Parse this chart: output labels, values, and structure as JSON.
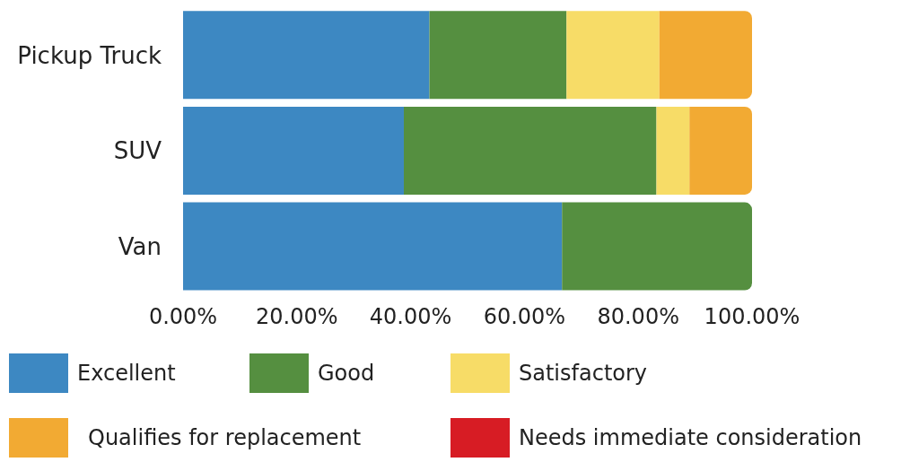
{
  "chart_data": {
    "type": "bar",
    "orientation": "horizontal",
    "stacked": true,
    "categories": [
      "Pickup Truck",
      "SUV",
      "Van"
    ],
    "series": [
      {
        "name": "Excellent",
        "color": "#3d88c2",
        "values": [
          43.3,
          38.8,
          66.6
        ]
      },
      {
        "name": "Good",
        "color": "#558f40",
        "values": [
          24.1,
          44.4,
          33.4
        ]
      },
      {
        "name": "Satisfactory",
        "color": "#f7dc67",
        "values": [
          16.3,
          5.8,
          0
        ]
      },
      {
        "name": "Qualifies for replacement",
        "color": "#f2aa33",
        "values": [
          16.3,
          11.0,
          0
        ]
      },
      {
        "name": "Needs immediate consideration",
        "color": "#d71c24",
        "values": [
          0,
          0,
          0
        ]
      }
    ],
    "xlim": [
      0,
      100
    ],
    "xticks": [
      {
        "value": 0,
        "label": "0.00%"
      },
      {
        "value": 20,
        "label": "20.00%"
      },
      {
        "value": 40,
        "label": "40.00%"
      },
      {
        "value": 60,
        "label": "60.00%"
      },
      {
        "value": 80,
        "label": "80.00%"
      },
      {
        "value": 100,
        "label": "100.00%"
      }
    ],
    "grid": false,
    "legend": "bottom"
  }
}
